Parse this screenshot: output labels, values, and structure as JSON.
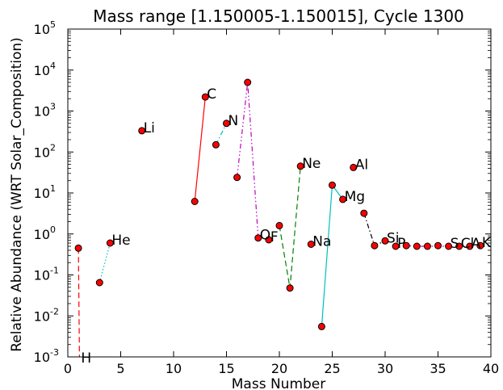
{
  "chart_data": {
    "type": "line",
    "title": "Mass range [1.150005-1.150015], Cycle 1300",
    "xlabel": "Mass Number",
    "ylabel": "Relative Abundance (WRT Solar_Composition)",
    "x_scale": "linear",
    "y_scale": "log",
    "xlim": [
      0,
      40
    ],
    "ylim": [
      0.001,
      100000
    ],
    "x_ticks": [
      0,
      5,
      10,
      15,
      20,
      25,
      30,
      35,
      40
    ],
    "x_tick_labels": [
      "0",
      "5",
      "10",
      "15",
      "20",
      "25",
      "30",
      "35",
      "40"
    ],
    "y_ticks": [
      0.001,
      0.01,
      0.1,
      1,
      10,
      100,
      1000,
      10000,
      100000
    ],
    "y_tick_labels": [
      {
        "base": "10",
        "exp": "-3"
      },
      {
        "base": "10",
        "exp": "-2"
      },
      {
        "base": "10",
        "exp": "-1"
      },
      {
        "base": "10",
        "exp": "0"
      },
      {
        "base": "10",
        "exp": "1"
      },
      {
        "base": "10",
        "exp": "2"
      },
      {
        "base": "10",
        "exp": "3"
      },
      {
        "base": "10",
        "exp": "4"
      },
      {
        "base": "10",
        "exp": "5"
      }
    ],
    "grid": false,
    "legend": "none",
    "marker_color": "#ff0000",
    "series": [
      {
        "element": "H",
        "label": "H",
        "color": "#ff0000",
        "dash": "dashed",
        "points": [
          [
            1,
            0.45
          ],
          [
            1.1,
            0.0008
          ]
        ]
      },
      {
        "element": "He",
        "label": "He",
        "color": "#00bfbf",
        "dash": "dotted",
        "points": [
          [
            3,
            0.065
          ],
          [
            4,
            0.6
          ]
        ]
      },
      {
        "element": "Li",
        "label": "Li",
        "color": "#000000",
        "dash": "none",
        "points": [
          [
            7,
            330
          ]
        ]
      },
      {
        "element": "C",
        "label": "C",
        "color": "#ff0000",
        "dash": "solid",
        "points": [
          [
            12,
            6.2
          ],
          [
            13,
            2200
          ]
        ]
      },
      {
        "element": "N",
        "label": "N",
        "color": "#00bfbf",
        "dash": "dashdot",
        "points": [
          [
            14,
            150
          ],
          [
            15,
            500
          ]
        ]
      },
      {
        "element": "O",
        "label": "O",
        "color": "#bf00bf",
        "dash": "dashdotdot",
        "points": [
          [
            16,
            24
          ],
          [
            17,
            5000
          ],
          [
            18,
            0.8
          ]
        ]
      },
      {
        "element": "F",
        "label": "F",
        "color": "#000000",
        "dash": "none",
        "points": [
          [
            19,
            0.72
          ]
        ]
      },
      {
        "element": "Ne",
        "label": "Ne",
        "color": "#008000",
        "dash": "dashed",
        "points": [
          [
            20,
            1.6
          ],
          [
            21,
            0.048
          ],
          [
            22,
            45
          ]
        ]
      },
      {
        "element": "Na",
        "label": "Na",
        "color": "#000000",
        "dash": "none",
        "points": [
          [
            23,
            0.56
          ]
        ]
      },
      {
        "element": "Mg",
        "label": "Mg",
        "color": "#00bfbf",
        "dash": "solid",
        "points": [
          [
            24,
            0.0055
          ],
          [
            25,
            15.5
          ],
          [
            26,
            7
          ]
        ]
      },
      {
        "element": "Al",
        "label": "Al",
        "color": "#000000",
        "dash": "none",
        "points": [
          [
            27,
            42
          ]
        ]
      },
      {
        "element": "Si",
        "label": "Si",
        "color": "#000000",
        "dash": "dashdot",
        "points": [
          [
            28,
            3.2
          ],
          [
            29,
            0.52
          ],
          [
            30,
            0.68
          ]
        ]
      },
      {
        "element": "P",
        "label": "P",
        "color": "#000000",
        "dash": "none",
        "points": [
          [
            31,
            0.5
          ]
        ]
      },
      {
        "element": "S",
        "label": "S",
        "color": "#bf00bf",
        "dash": "dashdotdot",
        "points": [
          [
            32,
            0.52
          ],
          [
            33,
            0.5
          ],
          [
            34,
            0.5
          ],
          [
            36,
            0.5
          ]
        ]
      },
      {
        "element": "Cl",
        "label": "Cl",
        "color": "#000000",
        "dash": "none",
        "points": [
          [
            35,
            0.52
          ],
          [
            37,
            0.5
          ]
        ]
      },
      {
        "element": "Ar",
        "label": "A",
        "color": "#008000",
        "dash": "dashed",
        "points": [
          [
            38,
            0.5
          ]
        ]
      },
      {
        "element": "K",
        "label": "K",
        "color": "#00bfbf",
        "dash": "solid",
        "points": [
          [
            39,
            0.52
          ]
        ]
      }
    ]
  }
}
